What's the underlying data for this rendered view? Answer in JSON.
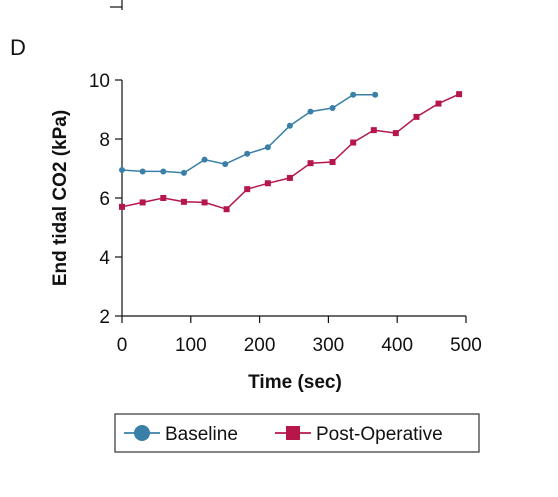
{
  "panel_letter": "D",
  "chart_data": {
    "type": "line",
    "title": "",
    "xlabel": "Time (sec)",
    "ylabel": "End tidal CO2 (kPa)",
    "xlim": [
      0,
      500
    ],
    "ylim": [
      2,
      10
    ],
    "xticks": [
      0,
      100,
      200,
      300,
      400,
      500
    ],
    "yticks": [
      2,
      4,
      6,
      8,
      10
    ],
    "grid": false,
    "legend_position": "bottom-center",
    "series": [
      {
        "name": "Baseline",
        "color": "#3a7fa8",
        "marker": "circle",
        "x": [
          0,
          30,
          60,
          90,
          120,
          150,
          182,
          212,
          244,
          274,
          306,
          336,
          368
        ],
        "y": [
          6.95,
          6.9,
          6.9,
          6.85,
          7.3,
          7.15,
          7.5,
          7.72,
          8.45,
          8.93,
          9.05,
          9.5,
          9.5
        ]
      },
      {
        "name": "Post-Operative",
        "color": "#b5174b",
        "marker": "square",
        "x": [
          0,
          30,
          60,
          90,
          120,
          152,
          182,
          212,
          244,
          274,
          306,
          336,
          366,
          398,
          428,
          460,
          490
        ],
        "y": [
          5.7,
          5.85,
          6.0,
          5.87,
          5.85,
          5.62,
          6.3,
          6.5,
          6.68,
          7.18,
          7.22,
          7.88,
          8.3,
          8.2,
          8.75,
          9.2,
          9.52
        ]
      }
    ]
  }
}
